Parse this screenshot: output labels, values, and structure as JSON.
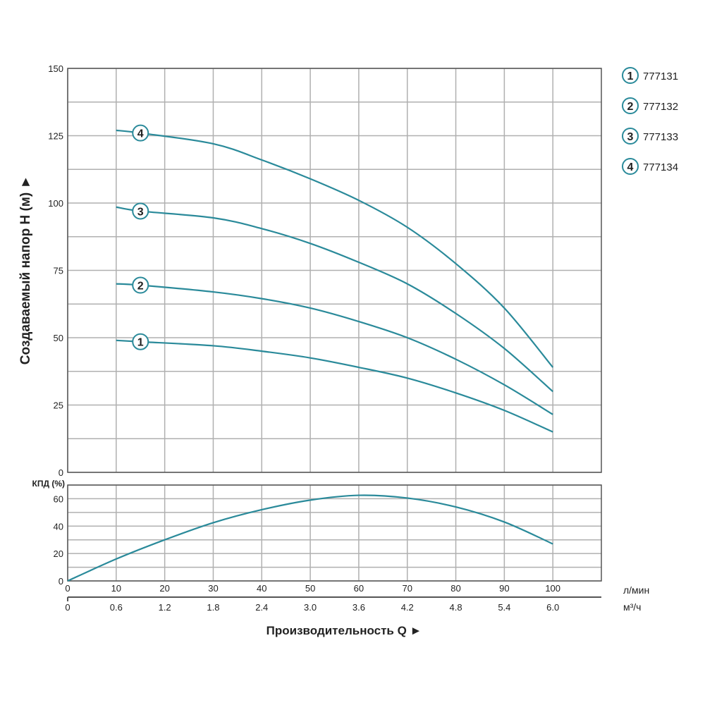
{
  "chart_data": [
    {
      "type": "line",
      "ylabel": "Создаваемый напор H (м) ►",
      "x_ticks": [
        0,
        10,
        20,
        30,
        40,
        50,
        60,
        70,
        80,
        90,
        100
      ],
      "y_ticks": [
        0,
        25,
        50,
        75,
        100,
        125,
        150
      ],
      "xlim": [
        0,
        110
      ],
      "ylim": [
        0,
        150
      ],
      "grid": true,
      "legend_position": "top-right",
      "series": [
        {
          "name": "777131",
          "marker": "1",
          "x": [
            10,
            15,
            30,
            40,
            50,
            60,
            70,
            80,
            90,
            100
          ],
          "y": [
            49,
            48.5,
            47,
            45,
            42.5,
            39,
            35,
            29.5,
            23,
            15
          ]
        },
        {
          "name": "777132",
          "marker": "2",
          "x": [
            10,
            15,
            30,
            40,
            50,
            60,
            70,
            80,
            90,
            100
          ],
          "y": [
            70,
            69.5,
            67,
            64.5,
            61,
            56,
            50,
            42,
            32.5,
            21.5
          ]
        },
        {
          "name": "777133",
          "marker": "3",
          "x": [
            10,
            15,
            30,
            40,
            50,
            60,
            70,
            80,
            90,
            100
          ],
          "y": [
            98.5,
            97,
            94.5,
            90.5,
            85,
            78,
            70,
            59,
            46,
            30
          ]
        },
        {
          "name": "777134",
          "marker": "4",
          "x": [
            10,
            15,
            30,
            40,
            50,
            60,
            70,
            80,
            90,
            100
          ],
          "y": [
            127,
            126,
            122,
            116,
            109,
            101,
            91,
            77.5,
            61,
            39
          ]
        }
      ]
    },
    {
      "type": "line",
      "ylabel": "КПД (%)",
      "xlabel": "Производительность Q ►",
      "x_ticks": [
        0,
        10,
        20,
        30,
        40,
        50,
        60,
        70,
        80,
        90,
        100
      ],
      "x_unit": "л/мин",
      "x2_ticks": [
        "0",
        "0.6",
        "1.2",
        "1.8",
        "2.4",
        "3.0",
        "3.6",
        "4.2",
        "4.8",
        "5.4",
        "6.0"
      ],
      "x2_unit": "м³/ч",
      "y_ticks": [
        0,
        20,
        40,
        60
      ],
      "xlim": [
        0,
        110
      ],
      "ylim": [
        0,
        70
      ],
      "grid": true,
      "series": [
        {
          "x": [
            0,
            10,
            20,
            30,
            40,
            50,
            60,
            70,
            80,
            90,
            100
          ],
          "y": [
            0,
            16,
            30,
            42.5,
            52,
            59,
            62.5,
            60.5,
            54,
            43,
            27
          ]
        }
      ]
    }
  ],
  "colors": {
    "curve": "#2a8a9a",
    "grid": "#b0b0b0",
    "axis": "#555555"
  }
}
